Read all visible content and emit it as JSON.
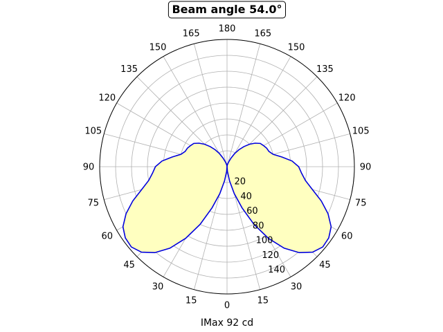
{
  "chart_data": {
    "type": "polar",
    "title": "Beam angle 54.0°",
    "xlabel": "IMax 92 cd",
    "angle_tick_labels": [
      "0",
      "15",
      "30",
      "45",
      "60",
      "75",
      "90",
      "105",
      "120",
      "135",
      "150",
      "165",
      "180",
      "165",
      "150",
      "135",
      "120",
      "105",
      "90",
      "75",
      "60",
      "45",
      "30",
      "15"
    ],
    "radial_ticks": [
      20,
      40,
      60,
      80,
      100,
      120,
      140
    ],
    "radial_range": [
      0,
      160
    ],
    "grid": true,
    "colors": {
      "line": "#0000dd",
      "fill": "#ffffc0",
      "grid": "#b0b0b0"
    },
    "series": [
      {
        "angle_deg": [
          0,
          5,
          10,
          15,
          20,
          25,
          30,
          35,
          40,
          45,
          50,
          55,
          60,
          65,
          70,
          75,
          80,
          85,
          90,
          95,
          100,
          105,
          110,
          115,
          120,
          125,
          130,
          135,
          140,
          145,
          150,
          155,
          160,
          165,
          170,
          175,
          180
        ],
        "intensity": [
          0,
          6,
          18,
          35,
          55,
          80,
          104,
          125,
          141,
          152,
          157,
          156,
          151,
          140,
          126,
          111,
          100,
          94,
          90,
          82,
          70,
          60,
          56,
          55,
          53,
          51,
          46,
          40,
          33,
          26,
          19,
          12,
          7,
          4,
          2,
          1,
          0
        ]
      }
    ]
  }
}
